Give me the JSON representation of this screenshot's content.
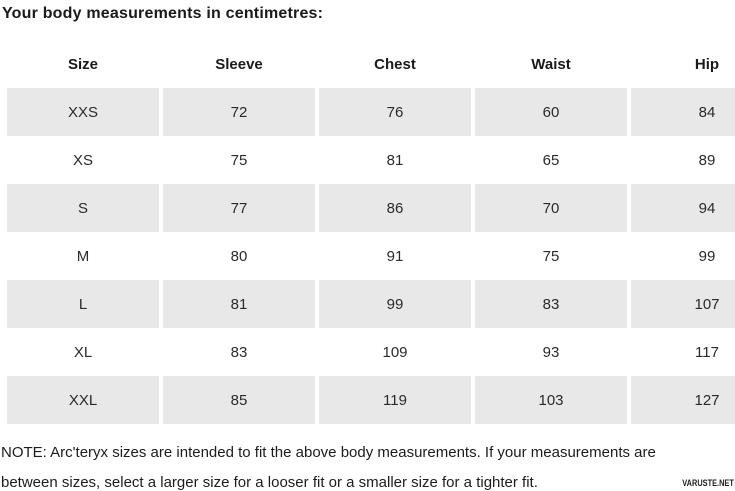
{
  "title": "Your body measurements in centimetres:",
  "table": {
    "columns": [
      "Size",
      "Sleeve",
      "Chest",
      "Waist",
      "Hip"
    ],
    "rows": [
      [
        "XXS",
        "72",
        "76",
        "60",
        "84"
      ],
      [
        "XS",
        "75",
        "81",
        "65",
        "89"
      ],
      [
        "S",
        "77",
        "86",
        "70",
        "94"
      ],
      [
        "M",
        "80",
        "91",
        "75",
        "99"
      ],
      [
        "L",
        "81",
        "99",
        "83",
        "107"
      ],
      [
        "XL",
        "83",
        "109",
        "93",
        "117"
      ],
      [
        "XXL",
        "85",
        "119",
        "103",
        "127"
      ]
    ]
  },
  "note": {
    "line1": "NOTE: Arc'teryx sizes are intended to fit the above body measurements. If your measurements are",
    "line2": "between sizes, select a larger size for a looser fit or a smaller size for a tighter fit."
  },
  "watermark": "VARUSTE.NET",
  "colors": {
    "stripe": "#e8e8e8",
    "text": "#1d1d1d"
  }
}
